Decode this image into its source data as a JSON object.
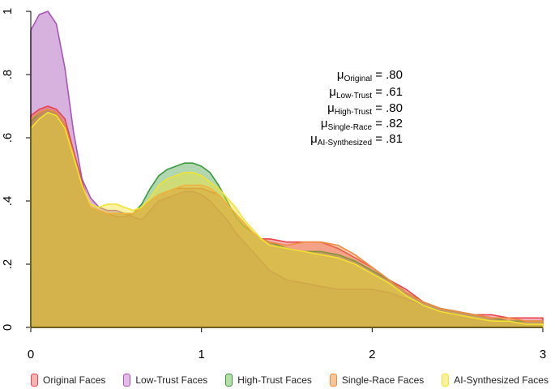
{
  "chart_data": {
    "type": "area",
    "title": "",
    "xlabel": "",
    "ylabel": "",
    "xlim": [
      0,
      3
    ],
    "ylim": [
      0,
      1
    ],
    "x_ticks": [
      0,
      1,
      2,
      3
    ],
    "x_tick_labels": [
      "0",
      "1",
      "2",
      "3"
    ],
    "y_ticks": [
      0,
      0.2,
      0.4,
      0.6,
      0.8,
      1
    ],
    "y_tick_labels": [
      "0",
      ".2",
      ".4",
      ".6",
      ".8",
      "1"
    ],
    "x": [
      0,
      0.05,
      0.1,
      0.15,
      0.2,
      0.25,
      0.3,
      0.35,
      0.4,
      0.45,
      0.5,
      0.55,
      0.6,
      0.65,
      0.7,
      0.75,
      0.8,
      0.85,
      0.9,
      0.95,
      1.0,
      1.05,
      1.1,
      1.15,
      1.2,
      1.25,
      1.3,
      1.35,
      1.4,
      1.5,
      1.6,
      1.7,
      1.8,
      1.9,
      2.0,
      2.1,
      2.2,
      2.3,
      2.4,
      2.5,
      2.6,
      2.7,
      2.8,
      2.9,
      3.0
    ],
    "series": [
      {
        "name": "Low-Trust Faces",
        "color": "#a855b8",
        "values": [
          0.94,
          0.99,
          1.0,
          0.96,
          0.82,
          0.62,
          0.47,
          0.41,
          0.38,
          0.37,
          0.37,
          0.36,
          0.35,
          0.34,
          0.37,
          0.4,
          0.41,
          0.42,
          0.43,
          0.43,
          0.42,
          0.4,
          0.37,
          0.34,
          0.3,
          0.27,
          0.24,
          0.21,
          0.18,
          0.15,
          0.14,
          0.13,
          0.12,
          0.12,
          0.12,
          0.11,
          0.09,
          0.07,
          0.05,
          0.04,
          0.03,
          0.02,
          0.02,
          0.01,
          0.01
        ]
      },
      {
        "name": "Original Faces",
        "color": "#e8424a",
        "values": [
          0.67,
          0.69,
          0.7,
          0.69,
          0.66,
          0.56,
          0.46,
          0.38,
          0.37,
          0.36,
          0.35,
          0.35,
          0.36,
          0.38,
          0.4,
          0.42,
          0.43,
          0.44,
          0.44,
          0.44,
          0.44,
          0.43,
          0.42,
          0.39,
          0.36,
          0.33,
          0.3,
          0.28,
          0.28,
          0.27,
          0.27,
          0.27,
          0.25,
          0.22,
          0.19,
          0.15,
          0.12,
          0.08,
          0.06,
          0.05,
          0.04,
          0.04,
          0.03,
          0.03,
          0.03
        ]
      },
      {
        "name": "High-Trust Faces",
        "color": "#3b9a3b",
        "values": [
          0.65,
          0.68,
          0.69,
          0.68,
          0.64,
          0.55,
          0.45,
          0.38,
          0.37,
          0.36,
          0.36,
          0.36,
          0.36,
          0.39,
          0.44,
          0.48,
          0.5,
          0.51,
          0.52,
          0.52,
          0.51,
          0.49,
          0.45,
          0.4,
          0.35,
          0.32,
          0.3,
          0.28,
          0.27,
          0.25,
          0.24,
          0.24,
          0.23,
          0.21,
          0.18,
          0.15,
          0.11,
          0.08,
          0.06,
          0.05,
          0.04,
          0.03,
          0.02,
          0.02,
          0.02
        ]
      },
      {
        "name": "Single-Race Faces",
        "color": "#f08a3e",
        "values": [
          0.66,
          0.68,
          0.69,
          0.68,
          0.64,
          0.55,
          0.45,
          0.38,
          0.37,
          0.36,
          0.36,
          0.36,
          0.36,
          0.38,
          0.4,
          0.42,
          0.43,
          0.44,
          0.45,
          0.45,
          0.45,
          0.44,
          0.42,
          0.39,
          0.36,
          0.33,
          0.3,
          0.28,
          0.27,
          0.26,
          0.27,
          0.27,
          0.26,
          0.23,
          0.19,
          0.15,
          0.11,
          0.08,
          0.06,
          0.05,
          0.04,
          0.03,
          0.03,
          0.02,
          0.02
        ]
      },
      {
        "name": "AI-Synthesized Faces",
        "color": "#f2e232",
        "values": [
          0.63,
          0.66,
          0.68,
          0.67,
          0.63,
          0.54,
          0.45,
          0.39,
          0.38,
          0.39,
          0.39,
          0.38,
          0.37,
          0.38,
          0.41,
          0.45,
          0.47,
          0.48,
          0.49,
          0.49,
          0.48,
          0.46,
          0.44,
          0.41,
          0.38,
          0.34,
          0.31,
          0.28,
          0.26,
          0.25,
          0.24,
          0.23,
          0.22,
          0.2,
          0.17,
          0.14,
          0.1,
          0.07,
          0.05,
          0.04,
          0.03,
          0.02,
          0.02,
          0.01,
          0.01
        ]
      }
    ],
    "annotations": [
      {
        "mu": "μ",
        "sub": "Original",
        "value": " = .80"
      },
      {
        "mu": "μ",
        "sub": "Low-Trust",
        "value": " = .61"
      },
      {
        "mu": "μ",
        "sub": "High-Trust",
        "value": " = .80"
      },
      {
        "mu": "μ",
        "sub": "Single-Race",
        "value": " = .82"
      },
      {
        "mu": "μ",
        "sub": "AI-Synthesized",
        "value": " = .81"
      }
    ],
    "legend": {
      "placement": "bottom",
      "items": [
        {
          "label": "Original Faces",
          "color": "#e8424a",
          "fill": "#f7b4b4"
        },
        {
          "label": "Low-Trust Faces",
          "color": "#a855b8",
          "fill": "#e3bde6"
        },
        {
          "label": "High-Trust Faces",
          "color": "#3b9a3b",
          "fill": "#b5dfa8"
        },
        {
          "label": "Single-Race Faces",
          "color": "#f08a3e",
          "fill": "#f7c79a"
        },
        {
          "label": "AI-Synthesized Faces",
          "color": "#f2e232",
          "fill": "#f8f2a0"
        }
      ]
    }
  }
}
